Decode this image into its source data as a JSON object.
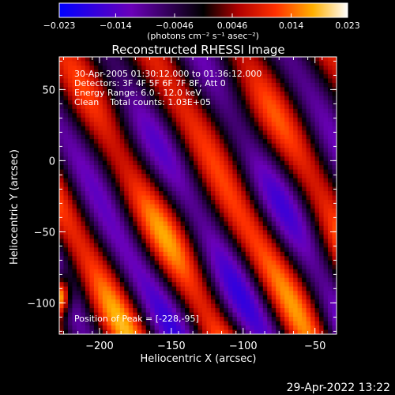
{
  "chart_data": {
    "type": "heatmap",
    "title": "Reconstructed RHESSI Image",
    "xlabel": "Heliocentric X (arcsec)",
    "ylabel": "Heliocentric Y (arcsec)",
    "xlim": [
      -228,
      -35
    ],
    "ylim": [
      -122,
      73
    ],
    "x_ticks": [
      {
        "value": -200,
        "label": "−200"
      },
      {
        "value": -150,
        "label": "−150"
      },
      {
        "value": -100,
        "label": "−100"
      },
      {
        "value": -50,
        "label": "−50"
      }
    ],
    "y_ticks": [
      {
        "value": 50,
        "label": "50"
      },
      {
        "value": 0,
        "label": "0"
      },
      {
        "value": -50,
        "label": "−50"
      },
      {
        "value": -100,
        "label": "−100"
      }
    ],
    "colorbar": {
      "range": [
        -0.023,
        0.023
      ],
      "colors": [
        "#0000ff",
        "#6a00b8",
        "#000000",
        "#b00000",
        "#ff3000",
        "#ffb000",
        "#ffffff"
      ],
      "ticks": [
        {
          "value": -0.023,
          "label": "−0.023"
        },
        {
          "value": -0.014,
          "label": "−0.014"
        },
        {
          "value": -0.0046,
          "label": "−0.0046"
        },
        {
          "value": 0.0046,
          "label": "0.0046"
        },
        {
          "value": 0.014,
          "label": "0.014"
        },
        {
          "value": 0.023,
          "label": "0.023"
        }
      ],
      "units": "(photons cm⁻² s⁻¹ asec⁻²)"
    },
    "annotations": [
      "30-Apr-2005 01:30:12.000 to 01:36:12.000",
      "Detectors: 3F 4F 5F 6F 7F 8F, Att 0",
      "Energy Range: 6.0 - 12.0 keV",
      "Clean    Total counts: 1.03E+05"
    ],
    "peak_label": "Position of Peak = [-228,-95]",
    "peak": [
      -228,
      -95
    ]
  },
  "timestamp": "29-Apr-2022 13:22"
}
